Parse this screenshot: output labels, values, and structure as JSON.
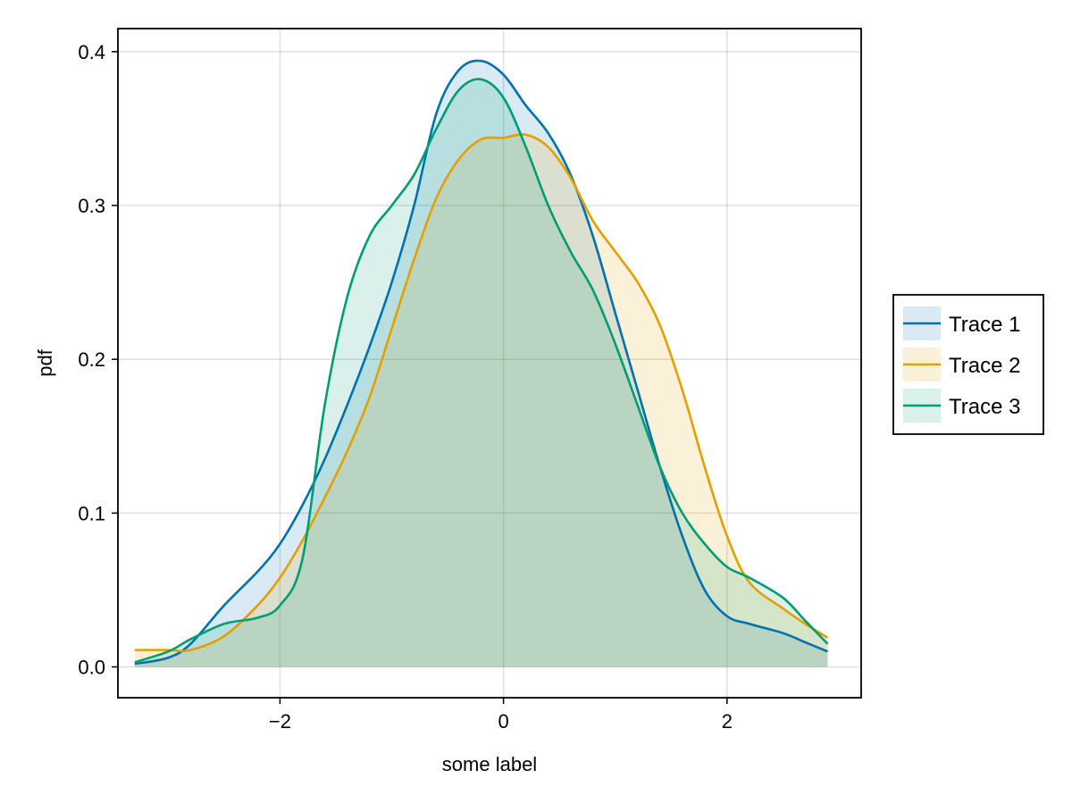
{
  "chart_data": {
    "type": "area",
    "xlabel": "some label",
    "ylabel": "pdf",
    "xlim": [
      -3.45,
      3.2
    ],
    "ylim": [
      -0.02,
      0.415
    ],
    "xticks": [
      -2,
      0,
      2
    ],
    "xtick_labels": [
      "−2",
      "0",
      "2"
    ],
    "yticks": [
      0.0,
      0.1,
      0.2,
      0.3,
      0.4
    ],
    "ytick_labels": [
      "0.0",
      "0.1",
      "0.2",
      "0.3",
      "0.4"
    ],
    "grid": true,
    "legend_position": "right",
    "x": [
      -3.3,
      -3.0,
      -2.8,
      -2.5,
      -2.2,
      -2.0,
      -1.8,
      -1.6,
      -1.4,
      -1.2,
      -1.0,
      -0.8,
      -0.6,
      -0.4,
      -0.2,
      0.0,
      0.2,
      0.4,
      0.6,
      0.8,
      1.0,
      1.2,
      1.4,
      1.6,
      1.8,
      2.0,
      2.2,
      2.5,
      2.7,
      2.9
    ],
    "series": [
      {
        "name": "Trace 1",
        "color": "#0072b2",
        "fill_opacity": 0.15,
        "values": [
          0.002,
          0.006,
          0.015,
          0.04,
          0.062,
          0.08,
          0.105,
          0.135,
          0.17,
          0.208,
          0.25,
          0.3,
          0.36,
          0.388,
          0.394,
          0.385,
          0.365,
          0.347,
          0.32,
          0.28,
          0.23,
          0.18,
          0.13,
          0.085,
          0.05,
          0.033,
          0.028,
          0.022,
          0.016,
          0.01
        ]
      },
      {
        "name": "Trace 2",
        "color": "#e69f00",
        "fill_opacity": 0.15,
        "values": [
          0.011,
          0.011,
          0.011,
          0.02,
          0.04,
          0.058,
          0.082,
          0.11,
          0.14,
          0.175,
          0.22,
          0.265,
          0.305,
          0.33,
          0.343,
          0.344,
          0.346,
          0.338,
          0.318,
          0.29,
          0.27,
          0.25,
          0.222,
          0.18,
          0.13,
          0.085,
          0.055,
          0.038,
          0.028,
          0.019
        ]
      },
      {
        "name": "Trace 3",
        "color": "#009e73",
        "fill_opacity": 0.15,
        "values": [
          0.003,
          0.01,
          0.018,
          0.028,
          0.032,
          0.04,
          0.07,
          0.17,
          0.24,
          0.28,
          0.3,
          0.32,
          0.35,
          0.375,
          0.382,
          0.37,
          0.338,
          0.3,
          0.27,
          0.245,
          0.21,
          0.17,
          0.13,
          0.1,
          0.08,
          0.065,
          0.058,
          0.045,
          0.03,
          0.015
        ]
      }
    ]
  }
}
